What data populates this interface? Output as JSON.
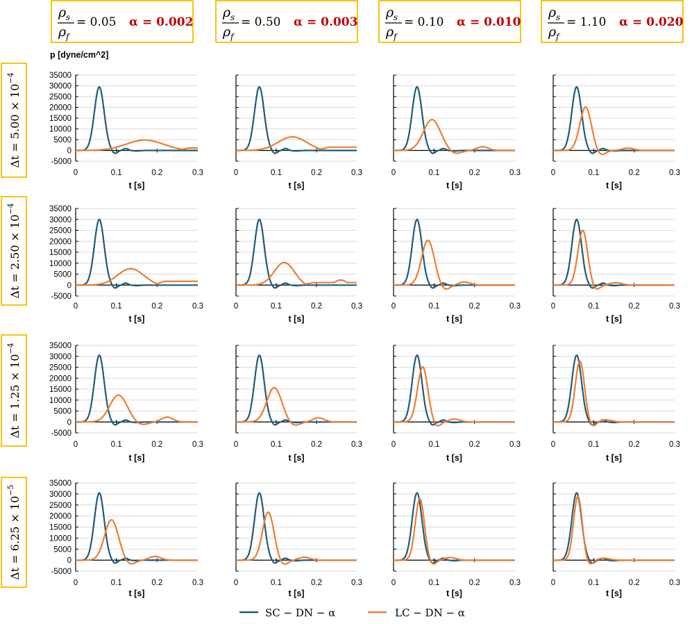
{
  "colors": {
    "sc": "#1d5b7b",
    "lc": "#ed7d31",
    "alpha": "#c00000",
    "frame": "#f5c518",
    "grid": "#d9d9d9"
  },
  "figure": {
    "ylabel": "p [dyne/cm^2]"
  },
  "columns": [
    {
      "ratio": "0.05",
      "alpha": "0.002"
    },
    {
      "ratio": "0.50",
      "alpha": "0.003"
    },
    {
      "ratio": "0.10",
      "alpha": "0.010"
    },
    {
      "ratio": "1.10",
      "alpha": "0.020"
    }
  ],
  "rows": [
    {
      "dt": "5.00 × 10",
      "exp": "−4",
      "show_ylabels": true
    },
    {
      "dt": "2.50 × 10",
      "exp": "−4",
      "show_ylabels": true
    },
    {
      "dt": "1.25 × 10",
      "exp": "−4",
      "show_ylabels": true
    },
    {
      "dt": "6.25 × 10",
      "exp": "−5",
      "show_ylabels": true
    }
  ],
  "chart_data": {
    "type": "line",
    "layout": "4x4 small multiples (rows: time step Δt, columns: ρs/ρf and α)",
    "xlabel": "t [s]",
    "ylabel": "p [dyne/cm^2]",
    "xlim": [
      0,
      0.3
    ],
    "xticks": [
      "0",
      "0.1",
      "0.2",
      "0.3"
    ],
    "ylim": [
      -5000,
      35000
    ],
    "yticks": [
      "35000",
      "30000",
      "25000",
      "20000",
      "15000",
      "10000",
      "5000",
      "0",
      "-5000"
    ],
    "legend": [
      "SC − DN − α",
      "LC − DN − α"
    ],
    "sc_reference": {
      "peak_t": 0.058,
      "peak": [
        29500,
        30000,
        30500,
        30500
      ],
      "undershoot": -1500,
      "ripple": 900
    },
    "lc_series_params": [
      [
        {
          "peak_t": 0.17,
          "peak": 4800,
          "width": 0.065,
          "tail": 1200
        },
        {
          "peak_t": 0.14,
          "peak": 6300,
          "width": 0.05,
          "bump_t": 0.27,
          "bump": 1500,
          "tail": 1600
        },
        {
          "peak_t": 0.095,
          "peak": 14300,
          "width": 0.03,
          "bump_t": 0.22,
          "bump": 1700,
          "tail": 0
        },
        {
          "peak_t": 0.08,
          "peak": 20200,
          "width": 0.02,
          "bump_t": 0.185,
          "bump": 1100,
          "tail": 0
        }
      ],
      [
        {
          "peak_t": 0.135,
          "peak": 7500,
          "width": 0.045,
          "bump_t": 0.285,
          "bump": 1800,
          "tail": 1800
        },
        {
          "peak_t": 0.12,
          "peak": 10300,
          "width": 0.035,
          "bump_t": 0.26,
          "bump": 2300,
          "tail": 1200
        },
        {
          "peak_t": 0.085,
          "peak": 20500,
          "width": 0.022,
          "bump_t": 0.175,
          "bump": 1400,
          "tail": 0
        },
        {
          "peak_t": 0.073,
          "peak": 25000,
          "width": 0.017,
          "bump_t": 0.155,
          "bump": 1100,
          "tail": 0
        }
      ],
      [
        {
          "peak_t": 0.105,
          "peak": 12300,
          "width": 0.03,
          "bump_t": 0.225,
          "bump": 2200,
          "tail": 0
        },
        {
          "peak_t": 0.095,
          "peak": 15700,
          "width": 0.026,
          "bump_t": 0.205,
          "bump": 1900,
          "tail": 0
        },
        {
          "peak_t": 0.072,
          "peak": 25200,
          "width": 0.018,
          "bump_t": 0.15,
          "bump": 1300,
          "tail": 0
        },
        {
          "peak_t": 0.066,
          "peak": 27800,
          "width": 0.016,
          "bump_t": 0.13,
          "bump": 1000,
          "tail": 0
        }
      ],
      [
        {
          "peak_t": 0.088,
          "peak": 18300,
          "width": 0.024,
          "bump_t": 0.195,
          "bump": 1700,
          "tail": 0
        },
        {
          "peak_t": 0.08,
          "peak": 21800,
          "width": 0.02,
          "bump_t": 0.17,
          "bump": 1300,
          "tail": 0
        },
        {
          "peak_t": 0.065,
          "peak": 27800,
          "width": 0.016,
          "bump_t": 0.14,
          "bump": 1200,
          "tail": 0
        },
        {
          "peak_t": 0.061,
          "peak": 29000,
          "width": 0.015,
          "bump_t": 0.125,
          "bump": 900,
          "tail": 0
        }
      ]
    ]
  }
}
